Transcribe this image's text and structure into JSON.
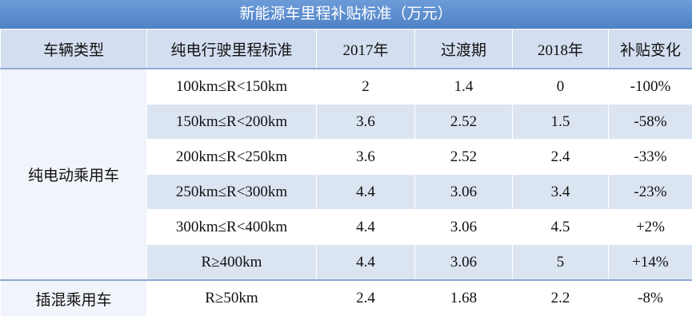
{
  "table": {
    "title": "新能源车里程补贴标准（万元）",
    "header": [
      "车辆类型",
      "纯电行驶里程标准",
      "2017年",
      "过渡期",
      "2018年",
      "补贴变化"
    ],
    "groups": [
      {
        "type": "纯电动乘用车",
        "rows": [
          [
            "100km≤R<150km",
            2,
            1.4,
            0,
            "-100%"
          ],
          [
            "150km≤R<200km",
            3.6,
            2.52,
            1.5,
            "-58%"
          ],
          [
            "200km≤R<250km",
            3.6,
            2.52,
            2.4,
            "-33%"
          ],
          [
            "250km≤R<300km",
            4.4,
            3.06,
            3.4,
            "-23%"
          ],
          [
            "300km≤R<400km",
            4.4,
            3.06,
            4.5,
            "+2%"
          ],
          [
            "R≥400km",
            4.4,
            3.06,
            5,
            "+14%"
          ]
        ]
      },
      {
        "type": "插混乘用车",
        "rows": [
          [
            "R≥50km",
            2.4,
            1.68,
            2.2,
            "-8%"
          ]
        ]
      }
    ]
  }
}
